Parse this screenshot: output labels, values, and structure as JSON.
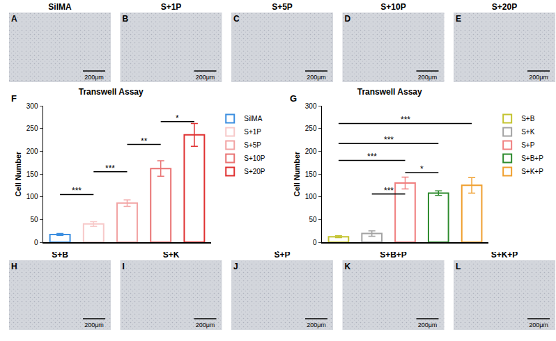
{
  "panels": [
    {
      "panel": "A",
      "title": "SilMA",
      "scale_bar": "200μm"
    },
    {
      "panel": "B",
      "title": "S+1P",
      "scale_bar": "200μm"
    },
    {
      "panel": "C",
      "title": "S+5P",
      "scale_bar": "200μm"
    },
    {
      "panel": "D",
      "title": "S+10P",
      "scale_bar": "200μm"
    },
    {
      "panel": "E",
      "title": "S+20P",
      "scale_bar": "200μm"
    },
    {
      "panel": "H",
      "title": "S+B",
      "scale_bar": "200μm"
    },
    {
      "panel": "I",
      "title": "S+K",
      "scale_bar": "200μm"
    },
    {
      "panel": "J",
      "title": "S+P",
      "scale_bar": "200μm"
    },
    {
      "panel": "K",
      "title": "S+B+P",
      "scale_bar": "200μm"
    },
    {
      "panel": "L",
      "title": "S+K+P",
      "scale_bar": "200μm"
    }
  ],
  "chart_data": [
    {
      "panel": "F",
      "type": "bar",
      "title": "Transwell Assay",
      "y_label": "Cell Number",
      "categories": [
        "SilMA",
        "S+1P",
        "S+5P",
        "S+10P",
        "S+20P"
      ],
      "values": [
        17,
        40,
        86,
        162,
        236
      ],
      "errors": [
        2,
        5,
        7,
        17,
        25
      ],
      "colors": [
        "#3d8fe0",
        "#f7c9c9",
        "#f2a3a3",
        "#e97373",
        "#e03232"
      ],
      "ylim": [
        0,
        300
      ],
      "yticks": [
        0,
        50,
        100,
        150,
        200,
        250,
        300
      ],
      "grid": false,
      "legend": "right",
      "tick_labels": "y",
      "significance": [
        {
          "from": "SilMA",
          "to": "S+1P",
          "label": "***",
          "y": 105
        },
        {
          "from": "S+1P",
          "to": "S+5P",
          "label": "***",
          "y": 155
        },
        {
          "from": "S+5P",
          "to": "S+10P",
          "label": "**",
          "y": 215
        },
        {
          "from": "S+10P",
          "to": "S+20P",
          "label": "*",
          "y": 265
        }
      ]
    },
    {
      "panel": "G",
      "type": "bar",
      "title": "Transwell Assay",
      "y_label": "Cell Number",
      "categories": [
        "S+B",
        "S+K",
        "S+P",
        "S+B+P",
        "S+K+P"
      ],
      "values": [
        12,
        19,
        130,
        108,
        125
      ],
      "errors": [
        2,
        6,
        13,
        5,
        17
      ],
      "colors": [
        "#c4c431",
        "#a3a3a3",
        "#f08080",
        "#2e8b2e",
        "#f0a030"
      ],
      "ylim": [
        0,
        300
      ],
      "yticks": [
        0,
        50,
        100,
        150,
        200,
        250,
        300
      ],
      "grid": false,
      "legend": "right",
      "tick_labels": "y",
      "significance": [
        {
          "from": "S+K",
          "to": "S+P",
          "label": "***",
          "y": 106
        },
        {
          "from": "S+P",
          "to": "S+B+P",
          "label": "*",
          "y": 153
        },
        {
          "from": "S+B",
          "to": "S+P",
          "label": "***",
          "y": 180
        },
        {
          "from": "S+B",
          "to": "S+B+P",
          "label": "***",
          "y": 217
        },
        {
          "from": "S+B",
          "to": "S+K+P",
          "label": "***",
          "y": 261
        }
      ]
    }
  ]
}
